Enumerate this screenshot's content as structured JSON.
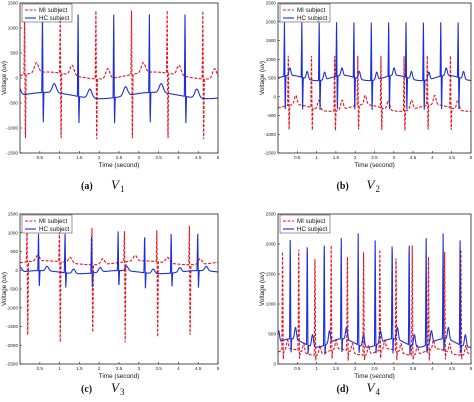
{
  "legend": {
    "mi": "MI subject",
    "hc": "HC subject"
  },
  "colors": {
    "mi": "#e8141c",
    "hc": "#1d2fd6",
    "axis": "#222222"
  },
  "chart_data": [
    {
      "type": "line",
      "id": "a",
      "caption": {
        "letter": "(a)",
        "variable": "V",
        "subscript": "1"
      },
      "xlabel": "Time (second)",
      "ylabel": "Voltage (uv)",
      "xlim": [
        0,
        5
      ],
      "xticks": [
        "0.5",
        "1",
        "1.5",
        "2",
        "2.5",
        "3",
        "3.5",
        "4",
        "4.5",
        "5"
      ],
      "ylim": [
        -1500,
        1500
      ],
      "yticks": [
        "-1500",
        "-1000",
        "-500",
        "0",
        "500",
        "1000",
        "1500"
      ],
      "legend_position": "top-left",
      "series": [
        {
          "name": "MI subject",
          "baseline": 50,
          "period": 0.9,
          "phase": 0.1,
          "spike": -1450,
          "peak": 1450,
          "wave": 200
        },
        {
          "name": "HC subject",
          "baseline": -350,
          "period": 0.9,
          "phase": 0.55,
          "spike": -1000,
          "peak": 1400,
          "wave": 180
        }
      ]
    },
    {
      "type": "line",
      "id": "b",
      "caption": {
        "letter": "(b)",
        "variable": "V",
        "subscript": "2"
      },
      "xlabel": "Time (second)",
      "ylabel": "Voltage (uv)",
      "xlim": [
        0,
        5
      ],
      "xticks": [
        "0.5",
        "1",
        "1.5",
        "2",
        "2.5",
        "3",
        "3.5",
        "4",
        "4.5",
        "5"
      ],
      "ylim": [
        -1500,
        2500
      ],
      "yticks": [
        "-1500",
        "-1000",
        "-500",
        "0",
        "500",
        "1000",
        "1500",
        "2000",
        "2500"
      ],
      "legend_position": "top-left",
      "series": [
        {
          "name": "MI subject",
          "baseline": -300,
          "period": 0.6,
          "phase": 0.25,
          "spike": -1000,
          "peak": 1200,
          "wave": 250
        },
        {
          "name": "HC subject",
          "baseline": 500,
          "period": 0.45,
          "phase": 0.15,
          "spike": -500,
          "peak": 2100,
          "wave": 200
        }
      ]
    },
    {
      "type": "line",
      "id": "c",
      "caption": {
        "letter": "(c)",
        "variable": "V",
        "subscript": "3"
      },
      "xlabel": "Time (second)",
      "ylabel": "Voltage (uv)",
      "xlim": [
        0,
        5
      ],
      "xticks": [
        "0.5",
        "1",
        "1.5",
        "2",
        "2.5",
        "3",
        "3.5",
        "4",
        "4.5",
        "5"
      ],
      "ylim": [
        -2500,
        1500
      ],
      "yticks": [
        "-2500",
        "-2000",
        "-1500",
        "-1000",
        "-500",
        "0",
        "500",
        "1000",
        "1500"
      ],
      "legend_position": "top-left",
      "series": [
        {
          "name": "MI subject",
          "baseline": 200,
          "period": 0.82,
          "phase": 0.98,
          "spike": -2000,
          "peak": 1200,
          "wave": 150
        },
        {
          "name": "HC subject",
          "baseline": -50,
          "period": 0.67,
          "phase": 0.45,
          "spike": -500,
          "peak": 1050,
          "wave": 120
        }
      ]
    },
    {
      "type": "line",
      "id": "d",
      "caption": {
        "letter": "(d)",
        "variable": "V",
        "subscript": "4"
      },
      "xlabel": "Time (second)",
      "ylabel": "Voltage (uv)",
      "xlim": [
        0,
        5
      ],
      "xticks": [
        "0.5",
        "1",
        "1.5",
        "2",
        "2.5",
        "3",
        "3.5",
        "4",
        "4.5",
        "5"
      ],
      "ylim": [
        0,
        2500
      ],
      "yticks": [
        "0",
        "500",
        "1000",
        "1500",
        "2000",
        "2500"
      ],
      "legend_position": "top-left",
      "series": [
        {
          "name": "MI subject",
          "baseline": 200,
          "period": 0.42,
          "phase": 0.1,
          "spike": 50,
          "peak": 2000,
          "wave": 150
        },
        {
          "name": "HC subject",
          "baseline": 350,
          "period": 0.44,
          "phase": 0.3,
          "spike": 150,
          "peak": 2200,
          "wave": 200
        }
      ]
    }
  ]
}
